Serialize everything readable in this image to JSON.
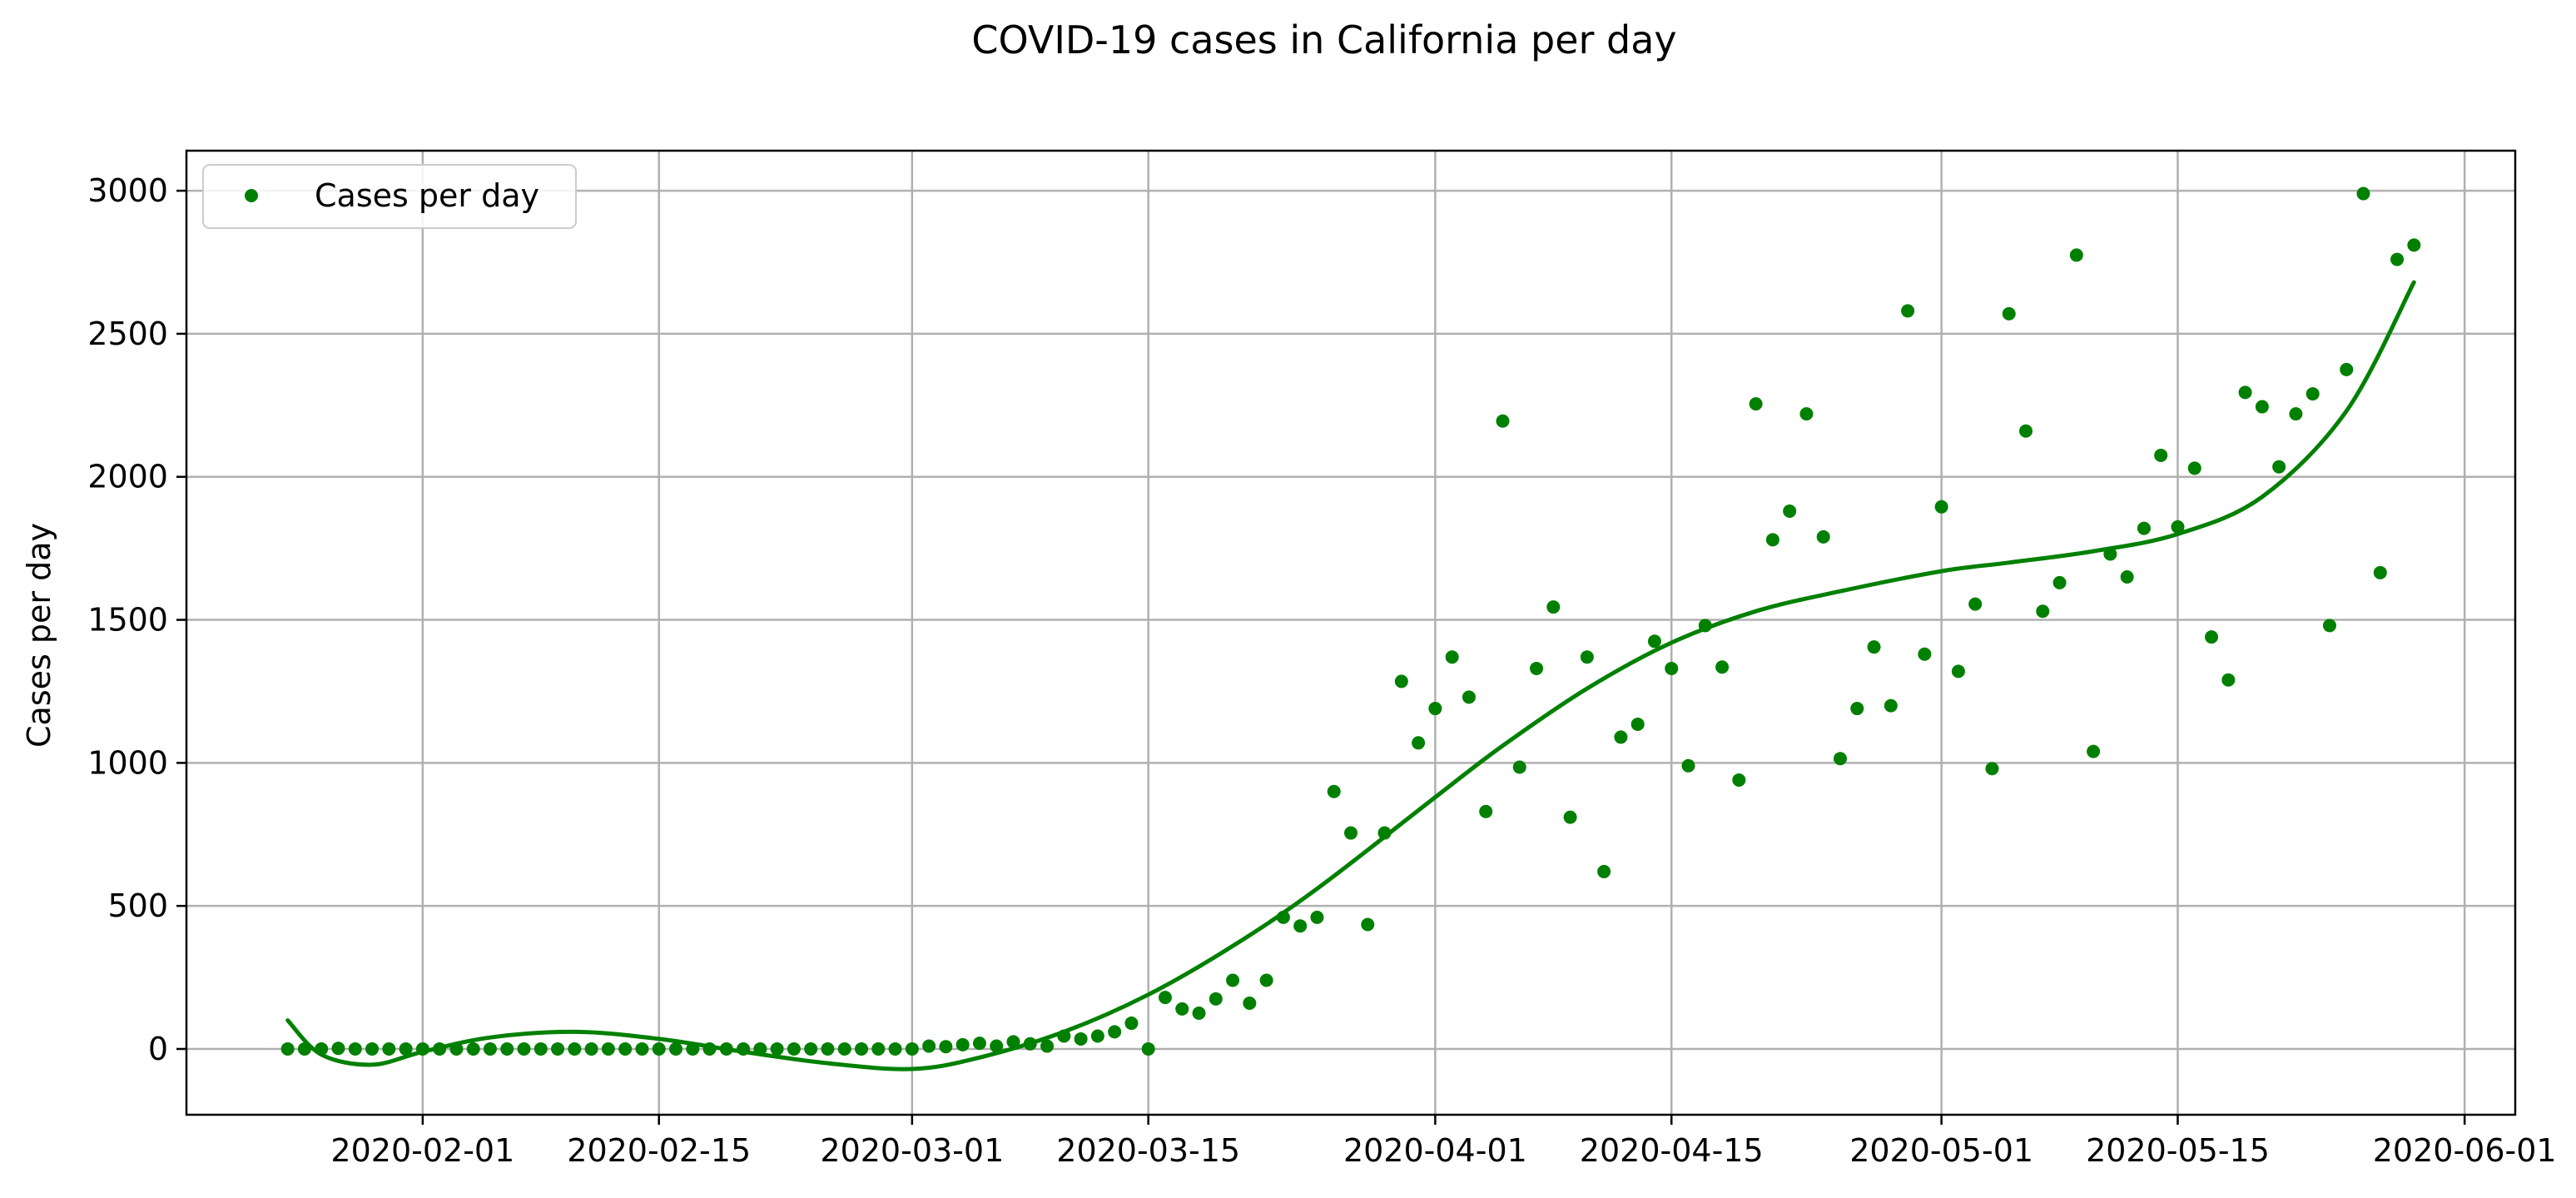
{
  "chart_data": {
    "type": "scatter",
    "title": "COVID-19 cases in California per day",
    "xlabel": "",
    "ylabel": "Cases per day",
    "x_axis_type": "date",
    "xlim": [
      "2020-01-18",
      "2020-06-04"
    ],
    "ylim": [
      -230,
      3140
    ],
    "grid": true,
    "legend_position": "top-left",
    "x_ticks": [
      "2020-02-01",
      "2020-02-15",
      "2020-03-01",
      "2020-03-15",
      "2020-04-01",
      "2020-04-15",
      "2020-05-01",
      "2020-05-15",
      "2020-06-01"
    ],
    "y_ticks": [
      0,
      500,
      1000,
      1500,
      2000,
      2500,
      3000
    ],
    "series": [
      {
        "name": "Cases per day",
        "kind": "scatter",
        "color": "#008000",
        "x": [
          "2020-01-24",
          "2020-01-25",
          "2020-01-26",
          "2020-01-27",
          "2020-01-28",
          "2020-01-29",
          "2020-01-30",
          "2020-01-31",
          "2020-02-01",
          "2020-02-02",
          "2020-02-03",
          "2020-02-04",
          "2020-02-05",
          "2020-02-06",
          "2020-02-07",
          "2020-02-08",
          "2020-02-09",
          "2020-02-10",
          "2020-02-11",
          "2020-02-12",
          "2020-02-13",
          "2020-02-14",
          "2020-02-15",
          "2020-02-16",
          "2020-02-17",
          "2020-02-18",
          "2020-02-19",
          "2020-02-20",
          "2020-02-21",
          "2020-02-22",
          "2020-02-23",
          "2020-02-24",
          "2020-02-25",
          "2020-02-26",
          "2020-02-27",
          "2020-02-28",
          "2020-02-29",
          "2020-03-01",
          "2020-03-02",
          "2020-03-03",
          "2020-03-04",
          "2020-03-05",
          "2020-03-06",
          "2020-03-07",
          "2020-03-08",
          "2020-03-09",
          "2020-03-10",
          "2020-03-11",
          "2020-03-12",
          "2020-03-13",
          "2020-03-14",
          "2020-03-15",
          "2020-03-16",
          "2020-03-17",
          "2020-03-18",
          "2020-03-19",
          "2020-03-20",
          "2020-03-21",
          "2020-03-22",
          "2020-03-23",
          "2020-03-24",
          "2020-03-25",
          "2020-03-26",
          "2020-03-27",
          "2020-03-28",
          "2020-03-29",
          "2020-03-30",
          "2020-03-31",
          "2020-04-01",
          "2020-04-02",
          "2020-04-03",
          "2020-04-04",
          "2020-04-05",
          "2020-04-06",
          "2020-04-07",
          "2020-04-08",
          "2020-04-09",
          "2020-04-10",
          "2020-04-11",
          "2020-04-12",
          "2020-04-13",
          "2020-04-14",
          "2020-04-15",
          "2020-04-16",
          "2020-04-17",
          "2020-04-18",
          "2020-04-19",
          "2020-04-20",
          "2020-04-21",
          "2020-04-22",
          "2020-04-23",
          "2020-04-24",
          "2020-04-25",
          "2020-04-26",
          "2020-04-27",
          "2020-04-28",
          "2020-04-29",
          "2020-04-30",
          "2020-05-01",
          "2020-05-02",
          "2020-05-03",
          "2020-05-04",
          "2020-05-05",
          "2020-05-06",
          "2020-05-07",
          "2020-05-08",
          "2020-05-09",
          "2020-05-10",
          "2020-05-11",
          "2020-05-12",
          "2020-05-13",
          "2020-05-14",
          "2020-05-15",
          "2020-05-16",
          "2020-05-17",
          "2020-05-18",
          "2020-05-19",
          "2020-05-20",
          "2020-05-21",
          "2020-05-22",
          "2020-05-23",
          "2020-05-24",
          "2020-05-25",
          "2020-05-26",
          "2020-05-27",
          "2020-05-28",
          "2020-05-29"
        ],
        "y": [
          0,
          0,
          0,
          2,
          0,
          0,
          0,
          0,
          0,
          0,
          0,
          0,
          0,
          0,
          0,
          0,
          0,
          0,
          0,
          0,
          0,
          0,
          0,
          0,
          0,
          0,
          0,
          0,
          0,
          0,
          0,
          0,
          0,
          0,
          0,
          0,
          0,
          0,
          10,
          8,
          15,
          20,
          10,
          25,
          18,
          10,
          45,
          35,
          45,
          60,
          90,
          0,
          180,
          140,
          125,
          175,
          240,
          160,
          240,
          460,
          430,
          460,
          900,
          755,
          435,
          755,
          1285,
          1070,
          1190,
          1370,
          1230,
          830,
          2195,
          985,
          1330,
          1545,
          810,
          1370,
          620,
          1090,
          1135,
          1425,
          1330,
          990,
          1480,
          1335,
          940,
          2255,
          1780,
          1880,
          2220,
          1790,
          1015,
          1190,
          1405,
          1200,
          2580,
          1380,
          1895,
          1320,
          1555,
          980,
          2570,
          2160,
          1530,
          1630,
          2775,
          1040,
          1730,
          1650,
          1820,
          2075,
          1825,
          2030,
          1440,
          1290,
          2295,
          2245,
          2035,
          2220,
          2290,
          1480,
          2375,
          2990,
          1665,
          2760,
          2810
        ]
      },
      {
        "name": "",
        "kind": "line",
        "color": "#008000",
        "x": [
          "2020-01-24",
          "2020-01-26",
          "2020-01-29",
          "2020-02-01",
          "2020-02-05",
          "2020-02-10",
          "2020-02-15",
          "2020-02-20",
          "2020-02-25",
          "2020-03-01",
          "2020-03-05",
          "2020-03-10",
          "2020-03-15",
          "2020-03-20",
          "2020-03-25",
          "2020-04-01",
          "2020-04-05",
          "2020-04-10",
          "2020-04-15",
          "2020-04-20",
          "2020-04-25",
          "2020-05-01",
          "2020-05-05",
          "2020-05-10",
          "2020-05-15",
          "2020-05-20",
          "2020-05-25",
          "2020-05-29"
        ],
        "y": [
          100,
          -20,
          -55,
          -10,
          40,
          60,
          35,
          -10,
          -50,
          -70,
          -30,
          60,
          190,
          360,
          560,
          880,
          1060,
          1260,
          1420,
          1530,
          1600,
          1670,
          1700,
          1740,
          1800,
          1930,
          2230,
          2680
        ]
      }
    ]
  }
}
